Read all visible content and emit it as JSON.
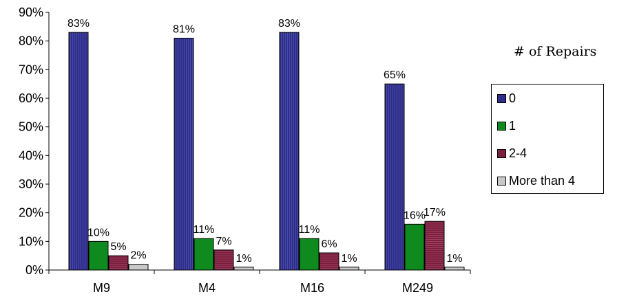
{
  "chart_data": {
    "type": "bar",
    "categories": [
      "M9",
      "M4",
      "M16",
      "M249"
    ],
    "series": [
      {
        "name": "0",
        "values": [
          83,
          81,
          83,
          65
        ],
        "color": "#2e2e8a",
        "labels": [
          "83%",
          "81%",
          "83%",
          "65%"
        ]
      },
      {
        "name": "1",
        "values": [
          10,
          11,
          11,
          16
        ],
        "color": "#0f8a1f",
        "labels": [
          "10%",
          "11%",
          "11%",
          "16%"
        ]
      },
      {
        "name": "2-4",
        "values": [
          5,
          7,
          6,
          17
        ],
        "color": "#7a1f3e",
        "labels": [
          "5%",
          "7%",
          "6%",
          "17%"
        ]
      },
      {
        "name": "More than 4",
        "values": [
          2,
          1,
          1,
          1
        ],
        "color": "#c8c8c8",
        "labels": [
          "2%",
          "1%",
          "1%",
          "1%"
        ]
      }
    ],
    "ylim": [
      0,
      90
    ],
    "yticks": [
      "0%",
      "10%",
      "20%",
      "30%",
      "40%",
      "50%",
      "60%",
      "70%",
      "80%",
      "90%"
    ],
    "legend_title": "# of Repairs",
    "legend_position": "right",
    "grid": false
  }
}
